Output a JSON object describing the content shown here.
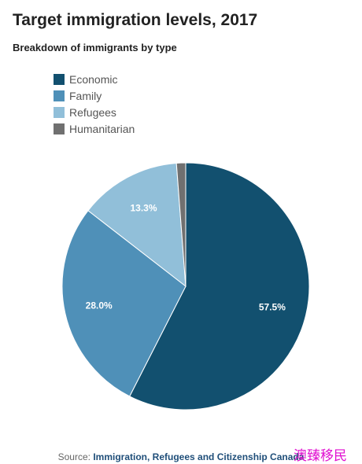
{
  "chart_data": {
    "type": "pie",
    "title": "Target immigration levels, 2017",
    "subtitle": "Breakdown of immigrants by type",
    "slices": [
      {
        "name": "Economic",
        "value": 57.5,
        "label": "57.5%",
        "color": "#12506f"
      },
      {
        "name": "Family",
        "value": 28.0,
        "label": "28.0%",
        "color": "#4f90b8"
      },
      {
        "name": "Refugees",
        "value": 13.3,
        "label": "13.3%",
        "color": "#91bfd9"
      },
      {
        "name": "Humanitarian",
        "value": 1.2,
        "label": "",
        "color": "#707070"
      }
    ],
    "legend_position": "top-left"
  },
  "source": {
    "prefix": "Source: ",
    "organization": "Immigration, Refugees and Citizenship Canada"
  },
  "watermark": "澳臻移民"
}
